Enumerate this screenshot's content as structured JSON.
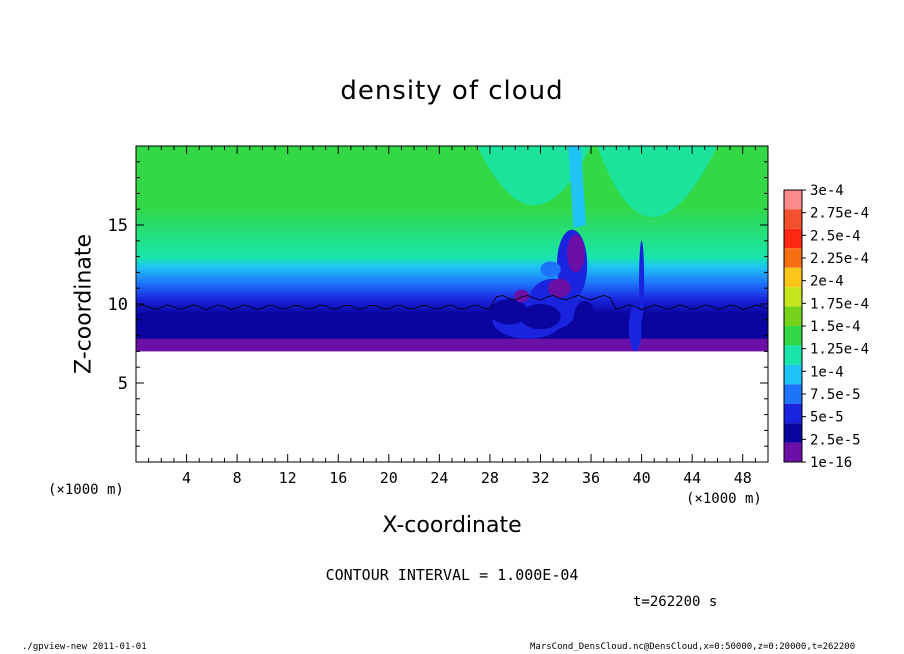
{
  "chart_data": {
    "type": "heatmap",
    "title": "density of cloud",
    "xlabel": "X-coordinate",
    "ylabel": "Z-coordinate",
    "x_unit_left": "(×1000 m)",
    "x_unit_right": "(×1000 m)",
    "xlim": [
      0,
      50
    ],
    "ylim": [
      0,
      20
    ],
    "x_ticks": [
      "4",
      "8",
      "12",
      "16",
      "20",
      "24",
      "28",
      "32",
      "36",
      "40",
      "44",
      "48"
    ],
    "y_ticks": [
      "5",
      "10",
      "15"
    ],
    "colorbar": {
      "labels": [
        "3e-4",
        "2.75e-4",
        "2.5e-4",
        "2.25e-4",
        "2e-4",
        "1.75e-4",
        "1.5e-4",
        "1.25e-4",
        "1e-4",
        "7.5e-5",
        "5e-5",
        "2.5e-5",
        "1e-16"
      ],
      "colors": [
        "#fb8b8b",
        "#f3502e",
        "#fd2810",
        "#f86e12",
        "#fbc51a",
        "#c4e51b",
        "#76d21b",
        "#32d845",
        "#19e5ab",
        "#1fc3f4",
        "#1d74fa",
        "#1a24df",
        "#0a059f",
        "#6b0fa7"
      ]
    },
    "field_description": "cloud density; cloud layer between z≈7 and z≈20 (×1000 m), convective plume near x≈30–40",
    "contour_interval": "CONTOUR INTERVAL = 1.000E-04",
    "time": "t=262200 s"
  },
  "footer": {
    "left": "./gpview-new   2011-01-01",
    "right": "MarsCond_DensCloud.nc@DensCloud,x=0:50000,z=0:20000,t=262200"
  }
}
